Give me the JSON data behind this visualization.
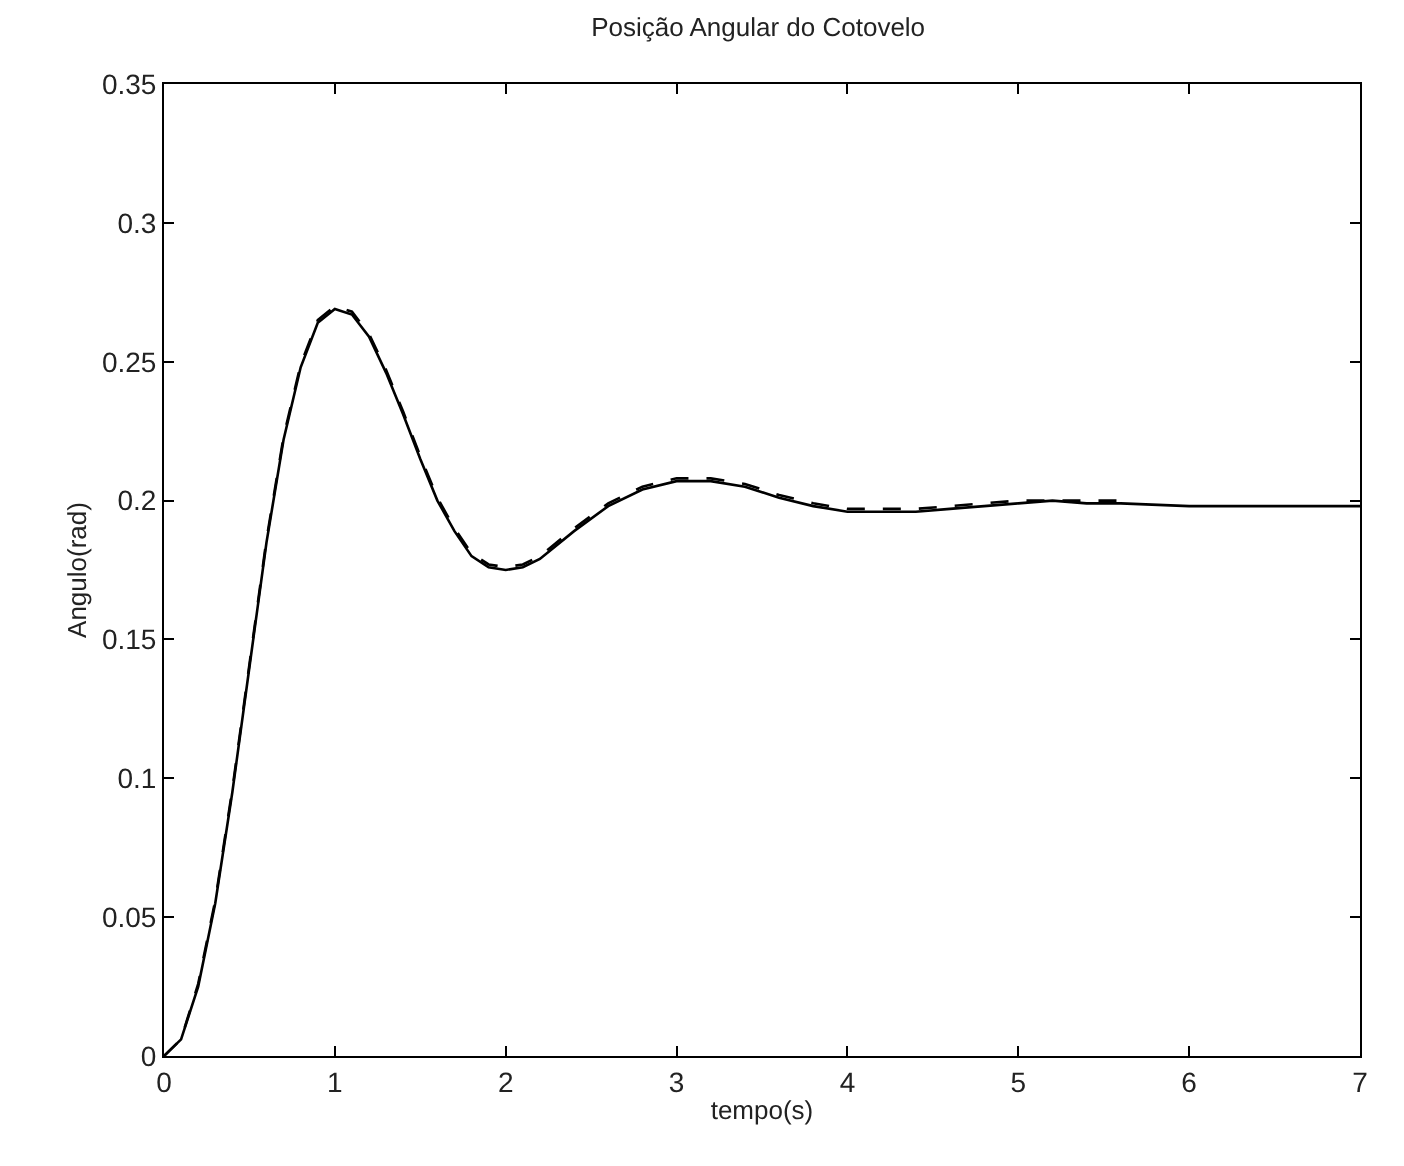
{
  "chart_data": {
    "type": "line",
    "title": "Posição Angular do Cotovelo",
    "xlabel": "tempo(s)",
    "ylabel": "Angulo(rad)",
    "xlim": [
      0,
      7
    ],
    "xticks": [
      0,
      1,
      2,
      3,
      4,
      5,
      6,
      7
    ],
    "ylim": [
      0,
      0.35
    ],
    "yticks": [
      0,
      0.05,
      0.1,
      0.15,
      0.2,
      0.25,
      0.3,
      0.35
    ],
    "series": [
      {
        "color": "#000000",
        "line_style": "solid",
        "x": [
          0,
          0.1,
          0.2,
          0.3,
          0.4,
          0.5,
          0.6,
          0.7,
          0.8,
          0.9,
          1.0,
          1.1,
          1.2,
          1.3,
          1.4,
          1.5,
          1.6,
          1.7,
          1.8,
          1.9,
          2.0,
          2.1,
          2.2,
          2.4,
          2.6,
          2.8,
          3.0,
          3.2,
          3.4,
          3.6,
          3.8,
          4.0,
          4.2,
          4.4,
          4.6,
          4.8,
          5.0,
          5.2,
          5.4,
          5.6,
          6.0,
          7.0
        ],
        "values": [
          0,
          0.006,
          0.025,
          0.055,
          0.095,
          0.14,
          0.185,
          0.222,
          0.248,
          0.264,
          0.269,
          0.267,
          0.259,
          0.246,
          0.231,
          0.215,
          0.2,
          0.189,
          0.18,
          0.176,
          0.175,
          0.176,
          0.179,
          0.189,
          0.198,
          0.204,
          0.207,
          0.207,
          0.205,
          0.201,
          0.198,
          0.196,
          0.196,
          0.196,
          0.197,
          0.198,
          0.199,
          0.2,
          0.199,
          0.199,
          0.198,
          0.198
        ]
      },
      {
        "color": "#000000",
        "line_style": "dashed",
        "x": [
          0,
          0.1,
          0.2,
          0.3,
          0.4,
          0.5,
          0.6,
          0.7,
          0.8,
          0.9,
          1.0,
          1.1,
          1.2,
          1.3,
          1.4,
          1.5,
          1.6,
          1.7,
          1.8,
          1.9,
          2.0,
          2.1,
          2.2,
          2.4,
          2.6,
          2.8,
          3.0,
          3.2,
          3.4,
          3.6,
          3.8,
          4.0,
          4.2,
          4.4,
          4.6,
          4.8,
          5.0,
          5.2,
          5.4,
          5.6
        ],
        "values": [
          0,
          0.006,
          0.026,
          0.056,
          0.096,
          0.141,
          0.186,
          0.223,
          0.249,
          0.265,
          0.27,
          0.268,
          0.26,
          0.247,
          0.232,
          0.216,
          0.201,
          0.19,
          0.181,
          0.177,
          0.176,
          0.177,
          0.18,
          0.19,
          0.199,
          0.205,
          0.208,
          0.208,
          0.206,
          0.202,
          0.199,
          0.197,
          0.197,
          0.197,
          0.198,
          0.199,
          0.2,
          0.2,
          0.2,
          0.2
        ]
      }
    ]
  }
}
